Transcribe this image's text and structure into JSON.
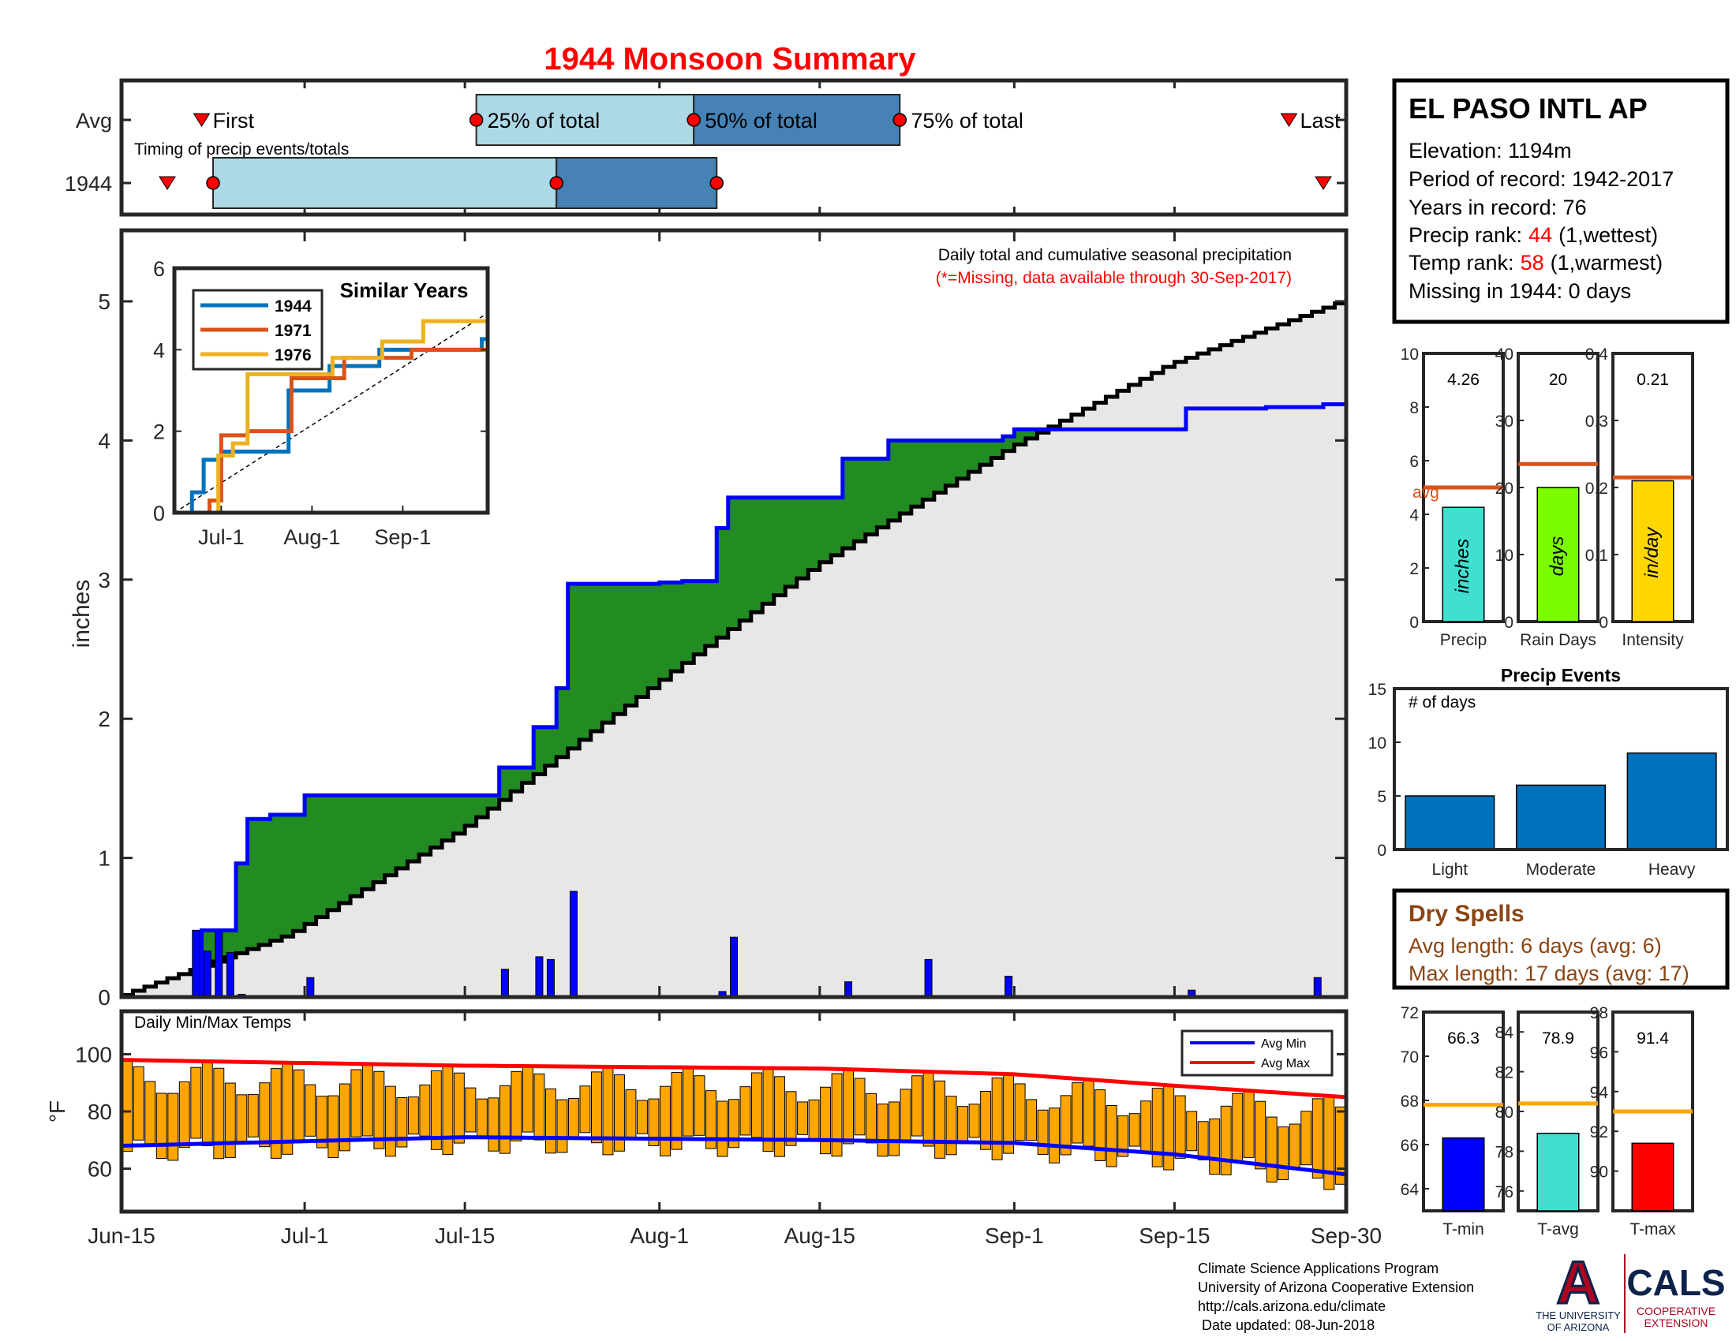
{
  "title": "1944 Monsoon Summary",
  "timing": {
    "row_labels": [
      "Avg",
      "1944"
    ],
    "note": "Timing of precip events/totals",
    "first_label": "First",
    "last_label": "Last",
    "q25_label": "25% of total",
    "q50_label": "50% of total",
    "q75_label": "75% of total",
    "avg": {
      "first": "Jun-22",
      "q25": "Jul-16",
      "q50": "Aug-04",
      "q75": "Aug-22",
      "last": "Sep-25"
    },
    "year": {
      "first": "Jun-19",
      "q25": "Jun-23",
      "q50": "Jul-23",
      "q75": "Aug-06",
      "last": "Sep-28"
    },
    "colors": {
      "light": "#add8e6",
      "dark": "#4682b4",
      "marker": "#ff0000"
    }
  },
  "station": {
    "name": "EL PASO INTL AP",
    "elevation": "Elevation: 1194m",
    "period": "Period of record: 1942-2017",
    "years": "Years in record: 76",
    "precip_rank_label": "Precip rank:",
    "precip_rank_value": "44",
    "precip_rank_note": "(1,wettest)",
    "temp_rank_label": "Temp rank:",
    "temp_rank_value": "58",
    "temp_rank_note": "(1,warmest)",
    "missing": "Missing in 1944: 0 days"
  },
  "main": {
    "ylabel": "inches",
    "note1": "Daily total and cumulative seasonal precipitation",
    "note2": "(*=Missing, data available through 30-Sep-2017)",
    "yticks": [
      "0",
      "1",
      "2",
      "3",
      "4",
      "5"
    ],
    "colors": {
      "above": "#228b22",
      "below": "#b8860b",
      "avgfill": "#e8e7e6",
      "year": "#0000ff",
      "bars": "#0000ff"
    }
  },
  "xticks": [
    "Jun-15",
    "Jul-1",
    "Jul-15",
    "Aug-1",
    "Aug-15",
    "Sep-1",
    "Sep-15",
    "Sep-30"
  ],
  "inset": {
    "title": "Similar Years",
    "yticks": [
      "0",
      "2",
      "4",
      "6"
    ],
    "xticks": [
      "Jul-1",
      "Aug-1",
      "Sep-1"
    ],
    "legend": [
      "1944",
      "1971",
      "1976"
    ],
    "colors": [
      "#0072bd",
      "#d95319",
      "#edb120"
    ]
  },
  "temps": {
    "title": "Daily Min/Max Temps",
    "ylabel": "°F",
    "yticks": [
      "60",
      "80",
      "100"
    ],
    "legend_min": "Avg Min",
    "legend_max": "Avg Max",
    "colors": {
      "bar": "#ffa500",
      "avgmin": "#0000ff",
      "avgmax": "#ff0000"
    }
  },
  "precip_stats": [
    {
      "label": "Precip",
      "value": "4.26",
      "unit": "inches",
      "color": "#40e0d0",
      "yticks": [
        "0",
        "2",
        "4",
        "6",
        "8",
        "10"
      ],
      "avg_label": "avg"
    },
    {
      "label": "Rain Days",
      "value": "20",
      "unit": "days",
      "color": "#7cfc00",
      "yticks": [
        "0",
        "10",
        "20",
        "30",
        "40"
      ]
    },
    {
      "label": "Intensity",
      "value": "0.21",
      "unit": "in/day",
      "color": "#ffd700",
      "yticks": [
        "0",
        "0.1",
        "0.2",
        "0.3",
        "0.4"
      ]
    }
  ],
  "events": {
    "title": "Precip Events",
    "note": "# of days",
    "yticks": [
      "0",
      "5",
      "10",
      "15"
    ],
    "categories": [
      "Light",
      "Moderate",
      "Heavy"
    ],
    "color": "#0072bd"
  },
  "dry": {
    "title": "Dry Spells",
    "avg": "Avg length: 6 days (avg: 6)",
    "max": "Max length: 17 days (avg: 17)",
    "color": "#8b4513"
  },
  "temp_stats": [
    {
      "label": "T-min",
      "value": "66.3",
      "color": "#0000ff",
      "yticks": [
        "64",
        "66",
        "68",
        "70",
        "72"
      ]
    },
    {
      "label": "T-avg",
      "value": "78.9",
      "color": "#40e0d0",
      "yticks": [
        "76",
        "78",
        "80",
        "82",
        "84"
      ]
    },
    {
      "label": "T-max",
      "value": "91.4",
      "color": "#ff0000",
      "yticks": [
        "90",
        "92",
        "94",
        "96",
        "98"
      ]
    }
  ],
  "footer": {
    "line1": "Climate Science Applications Program",
    "line2": "University of Arizona Cooperative Extension",
    "line3": "http://cals.arizona.edu/climate",
    "line4": " Date updated: 08-Jun-2018"
  },
  "logo": {
    "ua_mark": "A",
    "ua_line1": "THE UNIVERSITY",
    "ua_line2": "OF ARIZONA",
    "cals": "CALS",
    "cals_line1": "COOPERATIVE",
    "cals_line2": "EXTENSION",
    "colors": {
      "red": "#ab0520",
      "navy": "#0c234b"
    }
  },
  "chart_data": [
    {
      "type": "area",
      "title": "1944 Monsoon Summary",
      "ylabel": "inches",
      "ylim": [
        0,
        5.5
      ],
      "x_range": [
        "Jun-15",
        "Sep-30"
      ],
      "series": [
        {
          "name": "1944",
          "x": [
            "Jun-15",
            "Jun-21",
            "Jun-22",
            "Jun-23",
            "Jun-24",
            "Jun-25",
            "Jun-26",
            "Jun-28",
            "Jul-1",
            "Jul-18",
            "Jul-21",
            "Jul-23",
            "Jul-24",
            "Jul-25",
            "Aug-1",
            "Aug-3",
            "Aug-6",
            "Aug-7",
            "Aug-17",
            "Aug-21",
            "Aug-24",
            "Aug-31",
            "Sep-1",
            "Sep-8",
            "Sep-16",
            "Sep-23",
            "Sep-28",
            "Sep-30"
          ],
          "y": [
            0,
            0,
            0.48,
            0.48,
            0.48,
            0.96,
            1.28,
            1.31,
            1.45,
            1.65,
            1.94,
            2.22,
            2.97,
            2.97,
            2.98,
            2.99,
            3.37,
            3.59,
            3.87,
            4.0,
            4.0,
            4.03,
            4.08,
            4.08,
            4.23,
            4.24,
            4.26,
            4.26
          ]
        },
        {
          "name": "Daily total",
          "x": [
            "Jun-21",
            "Jun-22",
            "Jun-23",
            "Jun-24",
            "Jun-25",
            "Jul-1",
            "Jul-18",
            "Jul-21",
            "Jul-22",
            "Jul-24",
            "Aug-1",
            "Aug-3",
            "Aug-6",
            "Aug-7",
            "Aug-17",
            "Aug-24",
            "Aug-31",
            "Sep-16",
            "Sep-27"
          ],
          "y": [
            0.48,
            0.33,
            0.48,
            0.32,
            0.02,
            0.14,
            0.2,
            0.29,
            0.27,
            0.76,
            0.01,
            0.01,
            0.04,
            0.43,
            0.11,
            0.27,
            0.15,
            0.05,
            0.14
          ]
        },
        {
          "name": "Avg cumulative",
          "x": [
            "Jun-15",
            "Jun-30",
            "Jul-15",
            "Aug-1",
            "Aug-15",
            "Sep-1",
            "Sep-15",
            "Sep-30"
          ],
          "y": [
            0,
            0.45,
            1.2,
            2.25,
            3.1,
            3.95,
            4.55,
            5.0
          ]
        }
      ]
    },
    {
      "type": "line",
      "title": "Similar Years",
      "ylim": [
        0,
        6
      ],
      "x_ticks": [
        "Jul-1",
        "Aug-1",
        "Sep-1"
      ],
      "series": [
        {
          "name": "1944",
          "x": [
            "Jun-15",
            "Jun-21",
            "Jun-25",
            "Jul-1",
            "Jul-24",
            "Aug-7",
            "Aug-24",
            "Sep-28"
          ],
          "y": [
            0,
            0.5,
            1.3,
            1.5,
            3.0,
            3.6,
            4.0,
            4.26
          ]
        },
        {
          "name": "1971",
          "x": [
            "Jun-15",
            "Jun-27",
            "Jul-1",
            "Jul-10",
            "Jul-25",
            "Aug-12",
            "Sep-4",
            "Sep-30"
          ],
          "y": [
            0,
            0.3,
            1.9,
            2.0,
            3.3,
            3.8,
            4.0,
            4.9
          ]
        },
        {
          "name": "1976",
          "x": [
            "Jun-15",
            "Jun-30",
            "Jul-5",
            "Jul-10",
            "Aug-8",
            "Aug-25",
            "Sep-8",
            "Sep-30"
          ],
          "y": [
            0,
            1.4,
            1.7,
            3.4,
            3.8,
            4.2,
            4.7,
            5.0
          ]
        }
      ]
    },
    {
      "type": "bar",
      "title": "Daily Min/Max Temps",
      "ylabel": "°F",
      "ylim": [
        45,
        115
      ],
      "x_range": [
        "Jun-15",
        "Sep-30"
      ],
      "series": [
        {
          "name": "Avg Min",
          "x": [
            "Jun-15",
            "Jul-15",
            "Aug-15",
            "Sep-1",
            "Sep-15",
            "Sep-30"
          ],
          "y": [
            68,
            71,
            70,
            69,
            65,
            58
          ]
        },
        {
          "name": "Avg Max",
          "x": [
            "Jun-15",
            "Jul-15",
            "Aug-15",
            "Sep-1",
            "Sep-15",
            "Sep-30"
          ],
          "y": [
            98,
            96,
            95,
            93,
            89,
            85
          ]
        }
      ]
    },
    {
      "type": "bar",
      "categories": [
        "Precip"
      ],
      "values": [
        4.26
      ],
      "avg": 5.0,
      "ylim": [
        0,
        10
      ]
    },
    {
      "type": "bar",
      "categories": [
        "Rain Days"
      ],
      "values": [
        20
      ],
      "avg": 23.5,
      "ylim": [
        0,
        40
      ]
    },
    {
      "type": "bar",
      "categories": [
        "Intensity"
      ],
      "values": [
        0.21
      ],
      "avg": 0.215,
      "ylim": [
        0,
        0.4
      ]
    },
    {
      "type": "bar",
      "title": "Precip Events",
      "categories": [
        "Light",
        "Moderate",
        "Heavy"
      ],
      "values": [
        5,
        6,
        9
      ],
      "ylim": [
        0,
        15
      ]
    },
    {
      "type": "bar",
      "categories": [
        "T-min"
      ],
      "values": [
        66.3
      ],
      "avg": 67.8,
      "ylim": [
        63,
        72
      ]
    },
    {
      "type": "bar",
      "categories": [
        "T-avg"
      ],
      "values": [
        78.9
      ],
      "avg": 80.4,
      "ylim": [
        75,
        85
      ]
    },
    {
      "type": "bar",
      "categories": [
        "T-max"
      ],
      "values": [
        91.4
      ],
      "avg": 93.0,
      "ylim": [
        88,
        98
      ]
    }
  ]
}
